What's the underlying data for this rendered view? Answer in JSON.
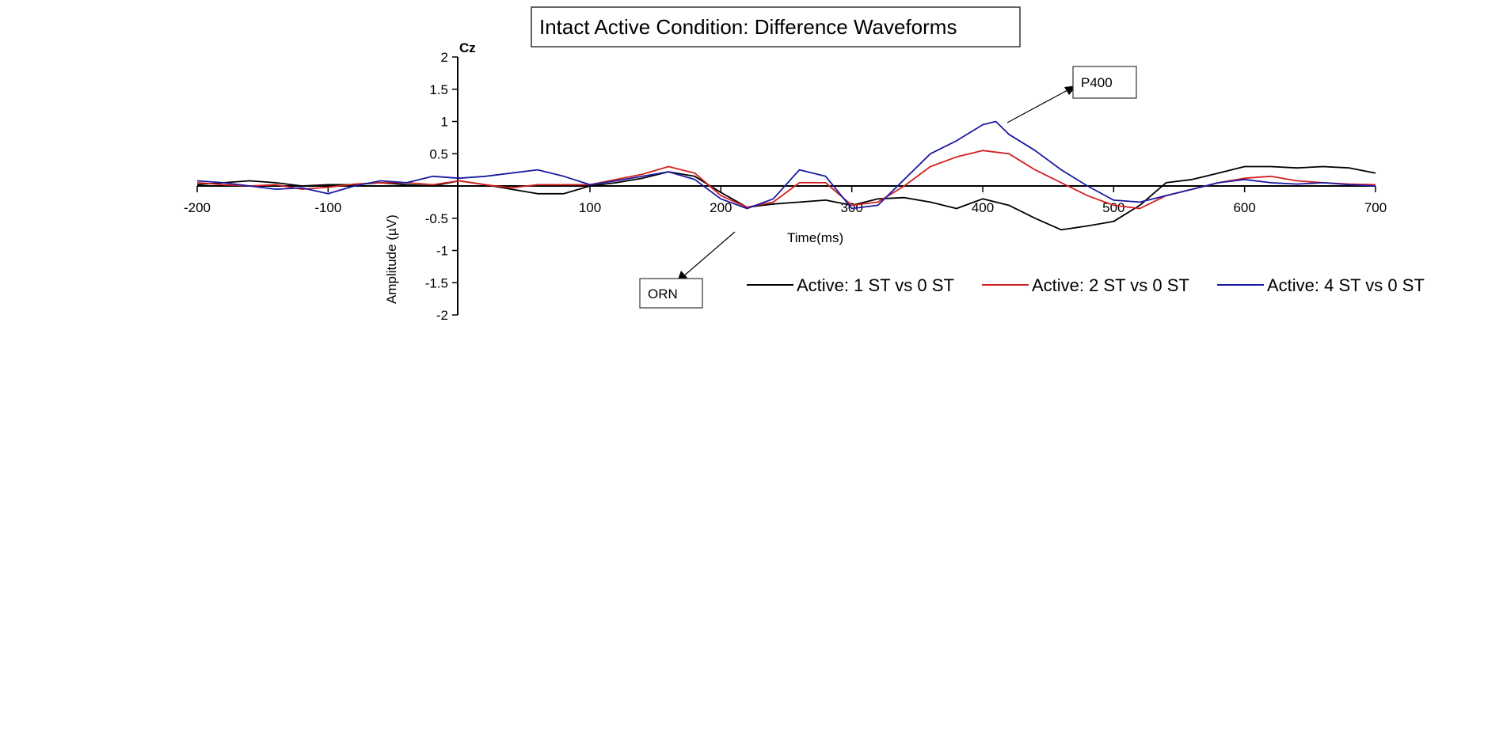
{
  "chart_data": {
    "type": "line",
    "title": "Intact Active Condition: Difference Waveforms",
    "channel_label": "Cz",
    "xlabel": "Time(ms)",
    "ylabel": "Amplitude (µV)",
    "xlim": [
      -200,
      700
    ],
    "ylim": [
      -2,
      2
    ],
    "x_ticks": [
      "-200",
      "-100",
      "100",
      "200",
      "300",
      "400",
      "500",
      "600",
      "700"
    ],
    "y_ticks": [
      "2",
      "1.5",
      "1",
      "0.5",
      "-0.5",
      "-1",
      "-1.5",
      "-2"
    ],
    "grid": false,
    "legend_position": "bottom-right",
    "annotations": [
      {
        "text": "P400",
        "x": 410,
        "y": 1.0
      },
      {
        "text": "ORN",
        "x": 210,
        "y": -0.45
      }
    ],
    "series": [
      {
        "name": "Active: 1 ST vs 0 ST",
        "color": "#000000",
        "points": [
          [
            -200,
            0.02
          ],
          [
            -180,
            0.05
          ],
          [
            -160,
            0.08
          ],
          [
            -140,
            0.05
          ],
          [
            -120,
            0.0
          ],
          [
            -100,
            0.02
          ],
          [
            -80,
            0.02
          ],
          [
            -60,
            0.05
          ],
          [
            -40,
            0.02
          ],
          [
            -20,
            0.0
          ],
          [
            0,
            0.08
          ],
          [
            20,
            0.02
          ],
          [
            40,
            -0.05
          ],
          [
            60,
            -0.12
          ],
          [
            80,
            -0.12
          ],
          [
            100,
            0.0
          ],
          [
            120,
            0.05
          ],
          [
            140,
            0.12
          ],
          [
            160,
            0.22
          ],
          [
            180,
            0.15
          ],
          [
            200,
            -0.1
          ],
          [
            220,
            -0.33
          ],
          [
            240,
            -0.28
          ],
          [
            260,
            -0.25
          ],
          [
            280,
            -0.22
          ],
          [
            300,
            -0.3
          ],
          [
            320,
            -0.2
          ],
          [
            340,
            -0.18
          ],
          [
            360,
            -0.25
          ],
          [
            380,
            -0.35
          ],
          [
            400,
            -0.2
          ],
          [
            420,
            -0.3
          ],
          [
            440,
            -0.5
          ],
          [
            460,
            -0.68
          ],
          [
            480,
            -0.62
          ],
          [
            500,
            -0.55
          ],
          [
            520,
            -0.3
          ],
          [
            540,
            0.05
          ],
          [
            560,
            0.1
          ],
          [
            580,
            0.2
          ],
          [
            600,
            0.3
          ],
          [
            620,
            0.3
          ],
          [
            640,
            0.28
          ],
          [
            660,
            0.3
          ],
          [
            680,
            0.28
          ],
          [
            700,
            0.2
          ]
        ]
      },
      {
        "name": "Active: 2 ST vs 0 ST",
        "color": "#d42020",
        "points": [
          [
            -200,
            0.05
          ],
          [
            -180,
            0.02
          ],
          [
            -160,
            0.0
          ],
          [
            -140,
            0.02
          ],
          [
            -120,
            -0.05
          ],
          [
            -100,
            -0.02
          ],
          [
            -80,
            0.03
          ],
          [
            -60,
            0.05
          ],
          [
            -40,
            0.05
          ],
          [
            -20,
            0.02
          ],
          [
            0,
            0.08
          ],
          [
            20,
            0.02
          ],
          [
            40,
            -0.03
          ],
          [
            60,
            0.02
          ],
          [
            80,
            0.02
          ],
          [
            100,
            0.02
          ],
          [
            120,
            0.1
          ],
          [
            140,
            0.18
          ],
          [
            160,
            0.3
          ],
          [
            180,
            0.2
          ],
          [
            200,
            -0.15
          ],
          [
            220,
            -0.33
          ],
          [
            240,
            -0.25
          ],
          [
            260,
            0.05
          ],
          [
            280,
            0.05
          ],
          [
            300,
            -0.3
          ],
          [
            320,
            -0.25
          ],
          [
            340,
            0.0
          ],
          [
            360,
            0.3
          ],
          [
            380,
            0.45
          ],
          [
            400,
            0.55
          ],
          [
            420,
            0.5
          ],
          [
            440,
            0.25
          ],
          [
            460,
            0.05
          ],
          [
            480,
            -0.15
          ],
          [
            500,
            -0.3
          ],
          [
            520,
            -0.35
          ],
          [
            540,
            -0.15
          ],
          [
            560,
            -0.05
          ],
          [
            580,
            0.05
          ],
          [
            600,
            0.12
          ],
          [
            620,
            0.15
          ],
          [
            640,
            0.08
          ],
          [
            660,
            0.05
          ],
          [
            680,
            0.03
          ],
          [
            700,
            0.02
          ]
        ]
      },
      {
        "name": "Active: 4 ST vs 0 ST",
        "color": "#1a1aa0",
        "points": [
          [
            -200,
            0.08
          ],
          [
            -180,
            0.05
          ],
          [
            -160,
            0.0
          ],
          [
            -140,
            -0.05
          ],
          [
            -120,
            -0.03
          ],
          [
            -100,
            -0.12
          ],
          [
            -80,
            0.0
          ],
          [
            -60,
            0.08
          ],
          [
            -40,
            0.05
          ],
          [
            -20,
            0.15
          ],
          [
            0,
            0.12
          ],
          [
            20,
            0.15
          ],
          [
            40,
            0.2
          ],
          [
            60,
            0.25
          ],
          [
            80,
            0.15
          ],
          [
            100,
            0.02
          ],
          [
            120,
            0.08
          ],
          [
            140,
            0.15
          ],
          [
            160,
            0.22
          ],
          [
            180,
            0.1
          ],
          [
            200,
            -0.2
          ],
          [
            220,
            -0.35
          ],
          [
            240,
            -0.2
          ],
          [
            260,
            0.25
          ],
          [
            280,
            0.15
          ],
          [
            300,
            -0.35
          ],
          [
            320,
            -0.3
          ],
          [
            340,
            0.1
          ],
          [
            360,
            0.5
          ],
          [
            380,
            0.7
          ],
          [
            400,
            0.95
          ],
          [
            410,
            1.0
          ],
          [
            420,
            0.8
          ],
          [
            440,
            0.55
          ],
          [
            460,
            0.25
          ],
          [
            480,
            0.0
          ],
          [
            500,
            -0.22
          ],
          [
            520,
            -0.25
          ],
          [
            540,
            -0.15
          ],
          [
            560,
            -0.05
          ],
          [
            580,
            0.05
          ],
          [
            600,
            0.1
          ],
          [
            620,
            0.05
          ],
          [
            640,
            0.03
          ],
          [
            660,
            0.05
          ],
          [
            680,
            0.02
          ],
          [
            700,
            0.0
          ]
        ]
      }
    ]
  }
}
